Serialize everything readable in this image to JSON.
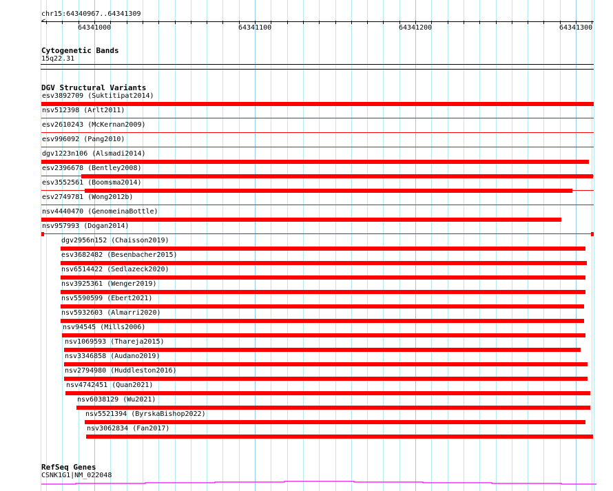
{
  "location": "chr15:64340967..64341309",
  "view": {
    "start": 64340967,
    "end": 64341309
  },
  "ruler": {
    "labels": [
      "64341000",
      "64341100",
      "64341200",
      "64341300"
    ],
    "label_positions": [
      64341000,
      64341100,
      64341200,
      64341300
    ]
  },
  "colors": {
    "feature": "#ff0000",
    "gene": "#ff00ff",
    "grid": "#b4eaf0",
    "grid_major": "#94cbe6"
  },
  "tracks": {
    "cytoband": {
      "title": "Cytogenetic Bands",
      "band": "15q22.31"
    },
    "dgv": {
      "title": "DGV Structural Variants",
      "features": [
        {
          "label": "esv3892709 (Suktitipat2014)",
          "start": 64340967,
          "end": 64341311,
          "thick": [
            [
              64340967,
              64341311
            ]
          ]
        },
        {
          "label": "nsv512398 (Arlt2011)",
          "start": 64340967,
          "end": 64341311,
          "thick": []
        },
        {
          "label": "esv2610243 (McKernan2009)",
          "start": 64340967,
          "end": 64341311,
          "thick": []
        },
        {
          "label": "esv996092 (Pang2010)",
          "start": 64340967,
          "end": 64341311,
          "thick": []
        },
        {
          "label": "dgv1223n106 (Alsmadi2014)",
          "start": 64340967,
          "end": 64341308,
          "thick": [
            [
              64340967,
              64341308
            ]
          ]
        },
        {
          "label": "esv2396678 (Bentley2008)",
          "start": 64340967,
          "end": 64341311,
          "thick": [
            [
              64340992,
              64341311
            ]
          ]
        },
        {
          "label": "esv3552561 (Boomsma2014)",
          "start": 64340967,
          "end": 64341311,
          "thick": [
            [
              64340994,
              64341298
            ]
          ]
        },
        {
          "label": "esv2749781 (Wong2012b)",
          "start": 64340967,
          "end": 64341311,
          "thick": []
        },
        {
          "label": "nsv4440470 (GenomeinaBottle)",
          "start": 64340967,
          "end": 64341291,
          "thick": [
            [
              64340967,
              64341291
            ]
          ]
        },
        {
          "label": "nsv957993 (Dogan2014)",
          "start": 64340967,
          "end": 64341311,
          "thick": [
            [
              64340967,
              64340968.7
            ],
            [
              64341309.3,
              64341311
            ]
          ]
        },
        {
          "label": "dgv2956n152 (Chaisson2019)",
          "start": 64340979,
          "end": 64341306,
          "thick": [
            [
              64340979,
              64341306
            ]
          ]
        },
        {
          "label": "esv3682482 (Besenbacher2015)",
          "start": 64340979,
          "end": 64341307,
          "thick": [
            [
              64340979,
              64341307
            ]
          ]
        },
        {
          "label": "nsv6514422 (Sedlazeck2020)",
          "start": 64340979,
          "end": 64341306,
          "thick": [
            [
              64340979,
              64341306
            ]
          ]
        },
        {
          "label": "nsv3925361 (Wenger2019)",
          "start": 64340979,
          "end": 64341306,
          "thick": [
            [
              64340979,
              64341306
            ]
          ]
        },
        {
          "label": "nsv5590599 (Ebert2021)",
          "start": 64340979,
          "end": 64341305,
          "thick": [
            [
              64340979,
              64341305
            ]
          ]
        },
        {
          "label": "nsv5932603 (Almarri2020)",
          "start": 64340979,
          "end": 64341305,
          "thick": [
            [
              64340979,
              64341305
            ]
          ]
        },
        {
          "label": "nsv94545 (Mills2006)",
          "start": 64340980,
          "end": 64341306,
          "thick": [
            [
              64340980,
              64341306
            ]
          ]
        },
        {
          "label": "nsv1069593 (Thareja2015)",
          "start": 64340981,
          "end": 64341303,
          "thick": [
            [
              64340981,
              64341303
            ]
          ]
        },
        {
          "label": "nsv3346858 (Audano2019)",
          "start": 64340981,
          "end": 64341307,
          "thick": [
            [
              64340981,
              64341307
            ]
          ]
        },
        {
          "label": "nsv2794980 (Huddleston2016)",
          "start": 64340981,
          "end": 64341307,
          "thick": [
            [
              64340981,
              64341307
            ]
          ]
        },
        {
          "label": "nsv4742451 (Quan2021)",
          "start": 64340982,
          "end": 64341309,
          "thick": [
            [
              64340982,
              64341309
            ]
          ]
        },
        {
          "label": "nsv6038129 (Wu2021)",
          "start": 64340989,
          "end": 64341309,
          "thick": [
            [
              64340989,
              64341309
            ]
          ]
        },
        {
          "label": "nsv5521394 (ByrskaBishop2022)",
          "start": 64340994,
          "end": 64341306,
          "thick": [
            [
              64340994,
              64341306
            ]
          ]
        },
        {
          "label": "nsv3062834 (Fan2017)",
          "start": 64340995,
          "end": 64341311,
          "thick": [
            [
              64340995,
              64341311
            ]
          ]
        }
      ]
    },
    "refseq": {
      "title": "RefSeq Genes",
      "gene": "CSNK1G1|NM_022048"
    }
  }
}
